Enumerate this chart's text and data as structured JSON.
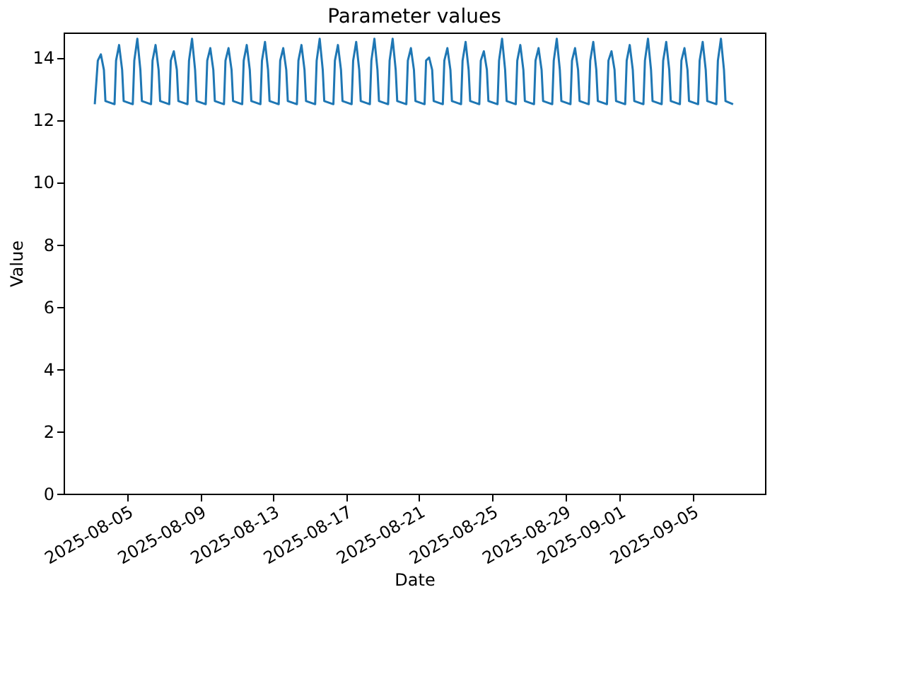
{
  "chart_data": {
    "type": "line",
    "title": "Parameter values",
    "xlabel": "Date",
    "ylabel": "Value",
    "xlim": [
      "2025-08-01T12:00",
      "2025-09-08T23:00"
    ],
    "xticks": [
      "2025-08-05",
      "2025-08-09",
      "2025-08-13",
      "2025-08-17",
      "2025-08-21",
      "2025-08-25",
      "2025-08-29",
      "2025-09-01",
      "2025-09-05"
    ],
    "ylim": [
      0,
      14.8
    ],
    "yticks": [
      0,
      2,
      4,
      6,
      8,
      10,
      12,
      14
    ],
    "grid": false,
    "marker": "none",
    "line_style": "solid",
    "x": [
      "2025-08-03T05:00",
      "2025-08-03T09:00",
      "2025-08-03T13:00",
      "2025-08-03T17:00",
      "2025-08-03T19:00",
      "2025-08-04T07:00",
      "2025-08-04T09:00",
      "2025-08-04T13:00",
      "2025-08-04T17:00",
      "2025-08-04T19:00",
      "2025-08-05T07:00",
      "2025-08-05T09:00",
      "2025-08-05T13:00",
      "2025-08-05T17:00",
      "2025-08-05T19:00",
      "2025-08-06T07:00",
      "2025-08-06T09:00",
      "2025-08-06T13:00",
      "2025-08-06T17:00",
      "2025-08-06T19:00",
      "2025-08-07T07:00",
      "2025-08-07T09:00",
      "2025-08-07T13:00",
      "2025-08-07T17:00",
      "2025-08-07T19:00",
      "2025-08-08T07:00",
      "2025-08-08T09:00",
      "2025-08-08T13:00",
      "2025-08-08T17:00",
      "2025-08-08T19:00",
      "2025-08-09T07:00",
      "2025-08-09T09:00",
      "2025-08-09T13:00",
      "2025-08-09T17:00",
      "2025-08-09T19:00",
      "2025-08-10T07:00",
      "2025-08-10T09:00",
      "2025-08-10T13:00",
      "2025-08-10T17:00",
      "2025-08-10T19:00",
      "2025-08-11T07:00",
      "2025-08-11T09:00",
      "2025-08-11T13:00",
      "2025-08-11T17:00",
      "2025-08-11T19:00",
      "2025-08-12T07:00",
      "2025-08-12T09:00",
      "2025-08-12T13:00",
      "2025-08-12T17:00",
      "2025-08-12T19:00",
      "2025-08-13T07:00",
      "2025-08-13T09:00",
      "2025-08-13T13:00",
      "2025-08-13T17:00",
      "2025-08-13T19:00",
      "2025-08-14T07:00",
      "2025-08-14T09:00",
      "2025-08-14T13:00",
      "2025-08-14T17:00",
      "2025-08-14T19:00",
      "2025-08-15T07:00",
      "2025-08-15T09:00",
      "2025-08-15T13:00",
      "2025-08-15T17:00",
      "2025-08-15T19:00",
      "2025-08-16T07:00",
      "2025-08-16T09:00",
      "2025-08-16T13:00",
      "2025-08-16T17:00",
      "2025-08-16T19:00",
      "2025-08-17T07:00",
      "2025-08-17T09:00",
      "2025-08-17T13:00",
      "2025-08-17T17:00",
      "2025-08-17T19:00",
      "2025-08-18T07:00",
      "2025-08-18T09:00",
      "2025-08-18T13:00",
      "2025-08-18T17:00",
      "2025-08-18T19:00",
      "2025-08-19T07:00",
      "2025-08-19T09:00",
      "2025-08-19T13:00",
      "2025-08-19T17:00",
      "2025-08-19T19:00",
      "2025-08-20T07:00",
      "2025-08-20T09:00",
      "2025-08-20T13:00",
      "2025-08-20T17:00",
      "2025-08-20T19:00",
      "2025-08-21T07:00",
      "2025-08-21T09:00",
      "2025-08-21T13:00",
      "2025-08-21T17:00",
      "2025-08-21T19:00",
      "2025-08-22T07:00",
      "2025-08-22T09:00",
      "2025-08-22T13:00",
      "2025-08-22T17:00",
      "2025-08-22T19:00",
      "2025-08-23T07:00",
      "2025-08-23T09:00",
      "2025-08-23T13:00",
      "2025-08-23T17:00",
      "2025-08-23T19:00",
      "2025-08-24T07:00",
      "2025-08-24T09:00",
      "2025-08-24T13:00",
      "2025-08-24T17:00",
      "2025-08-24T19:00",
      "2025-08-25T07:00",
      "2025-08-25T09:00",
      "2025-08-25T13:00",
      "2025-08-25T17:00",
      "2025-08-25T19:00",
      "2025-08-26T07:00",
      "2025-08-26T09:00",
      "2025-08-26T13:00",
      "2025-08-26T17:00",
      "2025-08-26T19:00",
      "2025-08-27T07:00",
      "2025-08-27T09:00",
      "2025-08-27T13:00",
      "2025-08-27T17:00",
      "2025-08-27T19:00",
      "2025-08-28T07:00",
      "2025-08-28T09:00",
      "2025-08-28T13:00",
      "2025-08-28T17:00",
      "2025-08-28T19:00",
      "2025-08-29T07:00",
      "2025-08-29T09:00",
      "2025-08-29T13:00",
      "2025-08-29T17:00",
      "2025-08-29T19:00",
      "2025-08-30T07:00",
      "2025-08-30T09:00",
      "2025-08-30T13:00",
      "2025-08-30T17:00",
      "2025-08-30T19:00",
      "2025-08-31T07:00",
      "2025-08-31T09:00",
      "2025-08-31T13:00",
      "2025-08-31T17:00",
      "2025-08-31T19:00",
      "2025-09-01T07:00",
      "2025-09-01T09:00",
      "2025-09-01T13:00",
      "2025-09-01T17:00",
      "2025-09-01T19:00",
      "2025-09-02T07:00",
      "2025-09-02T09:00",
      "2025-09-02T13:00",
      "2025-09-02T17:00",
      "2025-09-02T19:00",
      "2025-09-03T07:00",
      "2025-09-03T09:00",
      "2025-09-03T13:00",
      "2025-09-03T17:00",
      "2025-09-03T19:00",
      "2025-09-04T07:00",
      "2025-09-04T09:00",
      "2025-09-04T13:00",
      "2025-09-04T17:00",
      "2025-09-04T19:00",
      "2025-09-05T07:00",
      "2025-09-05T09:00",
      "2025-09-05T13:00",
      "2025-09-05T17:00",
      "2025-09-05T19:00",
      "2025-09-06T07:00",
      "2025-09-06T09:00",
      "2025-09-06T13:00",
      "2025-09-06T17:00",
      "2025-09-06T19:00",
      "2025-09-07T05:00"
    ],
    "series": [
      {
        "color": "#1f77b4",
        "values": [
          12.5,
          13.9,
          14.1,
          13.6,
          12.6,
          12.5,
          13.9,
          14.4,
          13.6,
          12.6,
          12.5,
          13.9,
          14.6,
          13.6,
          12.6,
          12.5,
          13.9,
          14.4,
          13.6,
          12.6,
          12.5,
          13.9,
          14.2,
          13.6,
          12.6,
          12.5,
          13.9,
          14.6,
          13.6,
          12.6,
          12.5,
          13.9,
          14.3,
          13.6,
          12.6,
          12.5,
          13.9,
          14.3,
          13.6,
          12.6,
          12.5,
          13.9,
          14.4,
          13.6,
          12.6,
          12.5,
          13.9,
          14.5,
          13.6,
          12.6,
          12.5,
          13.9,
          14.3,
          13.6,
          12.6,
          12.5,
          13.9,
          14.4,
          13.6,
          12.6,
          12.5,
          13.9,
          14.6,
          13.6,
          12.6,
          12.5,
          13.9,
          14.4,
          13.6,
          12.6,
          12.5,
          13.9,
          14.5,
          13.6,
          12.6,
          12.5,
          13.9,
          14.6,
          13.6,
          12.6,
          12.5,
          13.9,
          14.6,
          13.6,
          12.6,
          12.5,
          13.9,
          14.3,
          13.6,
          12.6,
          12.5,
          13.9,
          14.0,
          13.6,
          12.6,
          12.5,
          13.9,
          14.3,
          13.6,
          12.6,
          12.5,
          13.9,
          14.5,
          13.6,
          12.6,
          12.5,
          13.9,
          14.2,
          13.6,
          12.6,
          12.5,
          13.9,
          14.6,
          13.6,
          12.6,
          12.5,
          13.9,
          14.4,
          13.6,
          12.6,
          12.5,
          13.9,
          14.3,
          13.6,
          12.6,
          12.5,
          13.9,
          14.6,
          13.6,
          12.6,
          12.5,
          13.9,
          14.3,
          13.6,
          12.6,
          12.5,
          13.9,
          14.5,
          13.6,
          12.6,
          12.5,
          13.9,
          14.2,
          13.6,
          12.6,
          12.5,
          13.9,
          14.4,
          13.6,
          12.6,
          12.5,
          13.9,
          14.6,
          13.6,
          12.6,
          12.5,
          13.9,
          14.5,
          13.6,
          12.6,
          12.5,
          13.9,
          14.3,
          13.6,
          12.6,
          12.5,
          13.9,
          14.5,
          13.6,
          12.6,
          12.5,
          13.9,
          14.6,
          13.6,
          12.6,
          12.5
        ]
      }
    ]
  }
}
